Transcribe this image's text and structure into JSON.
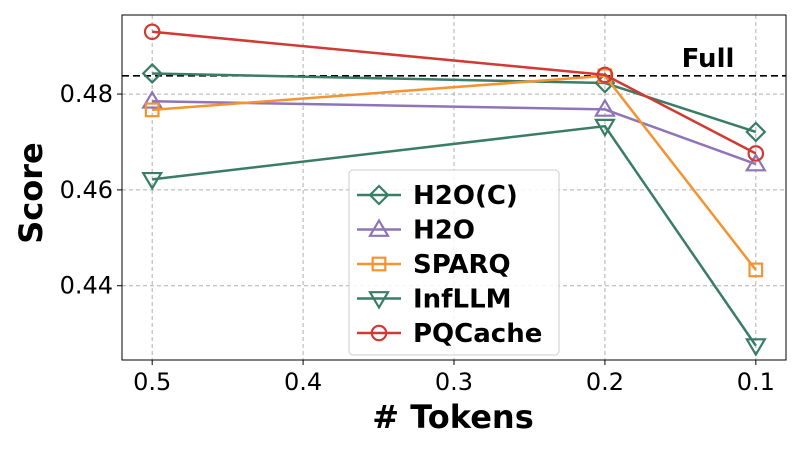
{
  "chart_data": {
    "type": "line",
    "x": [
      0.5,
      0.2,
      0.1
    ],
    "xticks": [
      "0.5",
      "0.4",
      "0.3",
      "0.2",
      "0.1"
    ],
    "xtick_values": [
      0.5,
      0.4,
      0.3,
      0.2,
      0.1
    ],
    "xlim": [
      0.52,
      0.08
    ],
    "x_reversed": true,
    "yticks": [
      "0.44",
      "0.46",
      "0.48"
    ],
    "ytick_values": [
      0.44,
      0.46,
      0.48
    ],
    "ylim": [
      0.4245,
      0.4965
    ],
    "xlabel": "# Tokens",
    "ylabel": "Score",
    "grid": true,
    "reference_line": {
      "label": "Full",
      "value": 0.4838,
      "style": "dashed",
      "color": "#000000"
    },
    "legend_position": "lower-center",
    "series": [
      {
        "name": "H2O(C)",
        "marker": "diamond",
        "color": "#3a7d66",
        "values": [
          0.4843,
          0.4823,
          0.4721
        ]
      },
      {
        "name": "H2O",
        "marker": "triangle-up",
        "color": "#8f74b8",
        "values": [
          0.4785,
          0.4768,
          0.4654
        ]
      },
      {
        "name": "SPARQ",
        "marker": "square",
        "color": "#f39431",
        "values": [
          0.4767,
          0.4838,
          0.4433
        ]
      },
      {
        "name": "InfLLM",
        "marker": "triangle-down",
        "color": "#3a7d66",
        "values": [
          0.4622,
          0.4733,
          0.4275
        ]
      },
      {
        "name": "PQCache",
        "marker": "circle",
        "color": "#d13a34",
        "values": [
          0.493,
          0.484,
          0.4676
        ]
      }
    ]
  }
}
